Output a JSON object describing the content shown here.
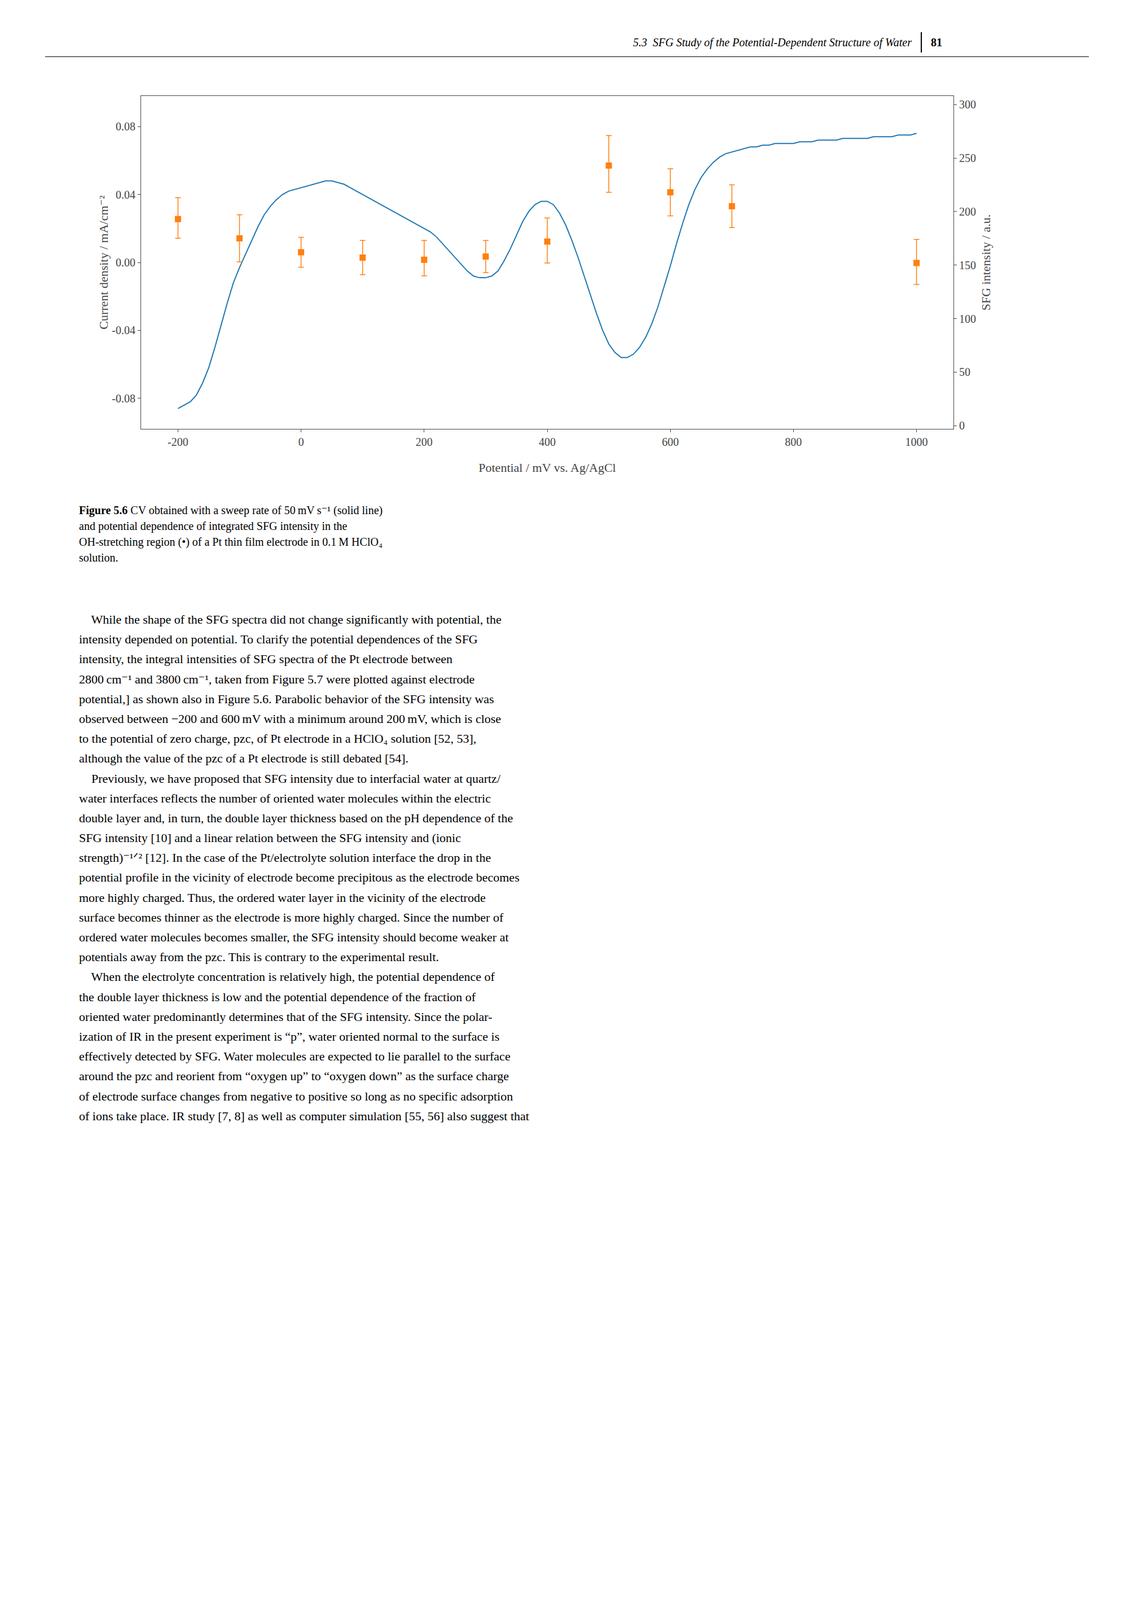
{
  "header": "5.3  SFG Study of the Potential-Dependent Structure of Water",
  "page_number": "81",
  "caption_label": "Figure 5.6",
  "caption": " CV obtained with a sweep rate of 50 mV s⁻¹ (solid line)\nand potential dependence of integrated SFG intensity in the\nOH-stretching region (•) of a Pt thin film electrode in 0.1 M HClO₄\nsolution.",
  "body_text": "    While the shape of the SFG spectra did not change significantly with potential, the\nintensity depended on potential. To clarify the potential dependences of the SFG\nintensity, the integral intensities of SFG spectra of the Pt electrode between\n2800 cm⁻¹ and 3800 cm⁻¹, taken from Figure 5.7 were plotted against electrode\npotential,] as shown also in Figure 5.6. Parabolic behavior of the SFG intensity was\nobserved between −200 and 600 mV with a minimum around 200 mV, which is close\nto the potential of zero charge, pzc, of Pt electrode in a HClO₄ solution [52, 53],\nalthough the value of the pzc of a Pt electrode is still debated [54].\n    Previously, we have proposed that SFG intensity due to interfacial water at quartz/\nwater interfaces reflects the number of oriented water molecules within the electric\ndouble layer and, in turn, the double layer thickness based on the pH dependence of the\nSFG intensity [10] and a linear relation between the SFG intensity and (ionic\nstrength)⁻¹ᐟ² [12]. In the case of the Pt/electrolyte solution interface the drop in the\npotential profile in the vicinity of electrode become precipitous as the electrode becomes\nmore highly charged. Thus, the ordered water layer in the vicinity of the electrode\nsurface becomes thinner as the electrode is more highly charged. Since the number of\nordered water molecules becomes smaller, the SFG intensity should become weaker at\npotentials away from the pzc. This is contrary to the experimental result.\n    When the electrolyte concentration is relatively high, the potential dependence of\nthe double layer thickness is low and the potential dependence of the fraction of\noriented water predominantly determines that of the SFG intensity. Since the polar-\nization of IR in the present experiment is “p”, water oriented normal to the surface is\neffectively detected by SFG. Water molecules are expected to lie parallel to the surface\naround the pzc and reorient from “oxygen up” to “oxygen down” as the surface charge\nof electrode surface changes from negative to positive so long as no specific adsorption\nof ions take place. IR study [7, 8] as well as computer simulation [55, 56] also suggest that",
  "chart_data": {
    "type": "line",
    "x_label": "Potential / mV vs. Ag/AgCl",
    "y_label": "Current density / mA/cm⁻²",
    "y2_label": "SFG intensity / a.u.",
    "xlim": [
      -260,
      1060
    ],
    "ylim": [
      -0.098,
      0.098
    ],
    "y2lim": [
      -3,
      308
    ],
    "xticks": [
      -200,
      0,
      200,
      400,
      600,
      800,
      1000
    ],
    "yticks": [
      -0.08,
      -0.04,
      {
        "value": 0,
        "label": "0.00"
      },
      0.04,
      0.08
    ],
    "y2ticks": [
      0,
      50,
      100,
      150,
      200,
      250,
      300
    ],
    "grid": false,
    "series": [
      {
        "type": "line",
        "line_style": "solid",
        "x": [
          -200,
          -190,
          -180,
          -170,
          -160,
          -150,
          -140,
          -130,
          -120,
          -110,
          -100,
          -90,
          -80,
          -70,
          -60,
          -50,
          -40,
          -30,
          -20,
          -10,
          0,
          10,
          20,
          30,
          40,
          50,
          60,
          70,
          80,
          90,
          100,
          110,
          120,
          130,
          140,
          150,
          160,
          170,
          180,
          190,
          200,
          210,
          220,
          230,
          240,
          250,
          260,
          270,
          280,
          290,
          300,
          310,
          320,
          330,
          340,
          350,
          360,
          370,
          380,
          390,
          400,
          410,
          420,
          430,
          440,
          450,
          460,
          470,
          480,
          490,
          500,
          510,
          520,
          530,
          540,
          550,
          560,
          570,
          580,
          590,
          600,
          610,
          620,
          630,
          640,
          650,
          660,
          670,
          680,
          690,
          700,
          710,
          720,
          730,
          740,
          750,
          760,
          770,
          780,
          790,
          800,
          810,
          820,
          830,
          840,
          850,
          860,
          870,
          880,
          890,
          900,
          910,
          920,
          930,
          940,
          950,
          960,
          970,
          980,
          990,
          1000
        ],
        "values": [
          -0.086,
          -0.084,
          -0.082,
          -0.078,
          -0.071,
          -0.062,
          -0.05,
          -0.037,
          -0.024,
          -0.012,
          -0.003,
          0.005,
          0.013,
          0.021,
          0.028,
          0.033,
          0.037,
          0.04,
          0.042,
          0.043,
          0.044,
          0.045,
          0.046,
          0.047,
          0.048,
          0.048,
          0.047,
          0.046,
          0.044,
          0.042,
          0.04,
          0.038,
          0.036,
          0.034,
          0.032,
          0.03,
          0.028,
          0.026,
          0.024,
          0.022,
          0.02,
          0.018,
          0.015,
          0.011,
          0.007,
          0.003,
          -0.001,
          -0.005,
          -0.008,
          -0.009,
          -0.009,
          -0.008,
          -0.005,
          0.001,
          0.008,
          0.016,
          0.024,
          0.03,
          0.034,
          0.036,
          0.036,
          0.034,
          0.029,
          0.022,
          0.013,
          0.003,
          -0.008,
          -0.019,
          -0.03,
          -0.04,
          -0.048,
          -0.053,
          -0.056,
          -0.056,
          -0.054,
          -0.05,
          -0.044,
          -0.036,
          -0.026,
          -0.014,
          -0.002,
          0.011,
          0.023,
          0.034,
          0.043,
          0.05,
          0.055,
          0.059,
          0.062,
          0.064,
          0.065,
          0.066,
          0.067,
          0.068,
          0.068,
          0.069,
          0.069,
          0.07,
          0.07,
          0.07,
          0.07,
          0.071,
          0.071,
          0.071,
          0.072,
          0.072,
          0.072,
          0.072,
          0.073,
          0.073,
          0.073,
          0.073,
          0.073,
          0.074,
          0.074,
          0.074,
          0.074,
          0.075,
          0.075,
          0.075,
          0.076
        ]
      },
      {
        "type": "scatter",
        "axis": "y2",
        "marker": "square",
        "x": [
          -200,
          -100,
          0,
          100,
          200,
          300,
          400,
          500,
          600,
          700,
          1000
        ],
        "values": [
          193,
          175,
          162,
          157,
          155,
          158,
          172,
          243,
          218,
          205,
          152
        ],
        "error_upper": [
          20,
          22,
          14,
          16,
          18,
          15,
          22,
          28,
          22,
          20,
          22
        ],
        "error_lower": [
          18,
          22,
          14,
          16,
          15,
          15,
          20,
          25,
          22,
          20,
          20
        ]
      }
    ]
  }
}
